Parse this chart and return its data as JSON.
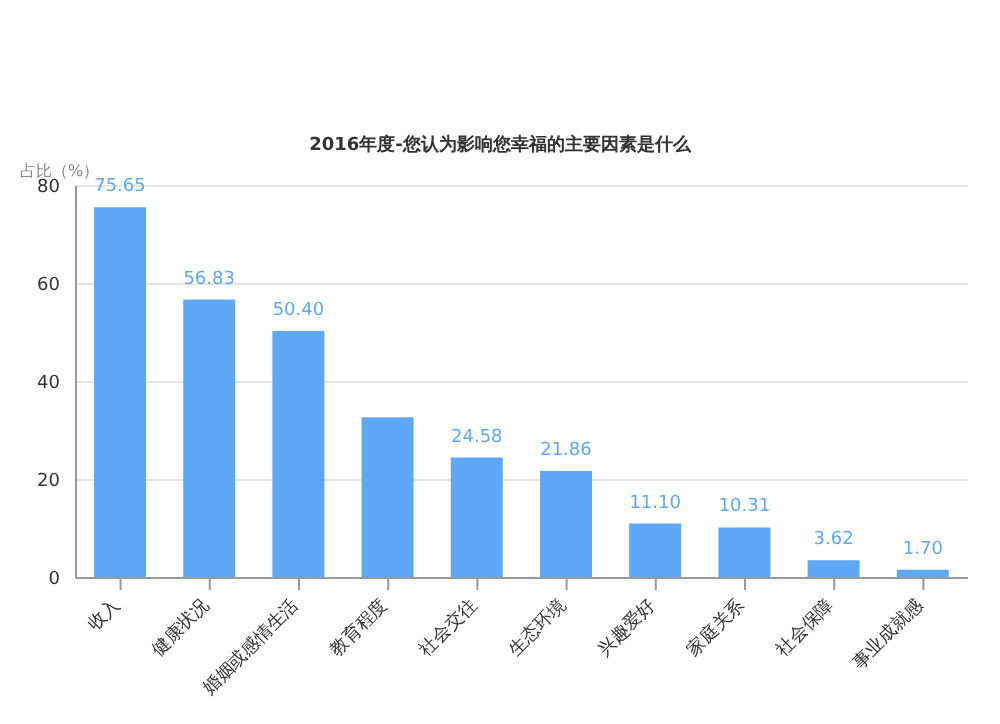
{
  "chart_data": {
    "type": "bar",
    "title": "2016年度-您认为影响您幸福的主要因素是什么",
    "ylabel": "占比（%）",
    "categories": [
      "收入",
      "健康状况",
      "婚姻或感情生活",
      "教育程度",
      "社会交往",
      "生态环境",
      "兴趣爱好",
      "家庭关系",
      "社会保障",
      "事业成就感"
    ],
    "values": [
      75.65,
      56.83,
      50.4,
      32.8,
      24.58,
      21.86,
      11.1,
      10.31,
      3.62,
      1.7
    ],
    "value_labels": [
      "75.65",
      "56.83",
      "50.40",
      null,
      "24.58",
      "21.86",
      "11.10",
      "10.31",
      "3.62",
      "1.70"
    ],
    "color": "#5ea9f7",
    "ylim": [
      0,
      80
    ],
    "yticks": [
      0,
      20,
      40,
      60,
      80
    ],
    "grid": "y"
  }
}
